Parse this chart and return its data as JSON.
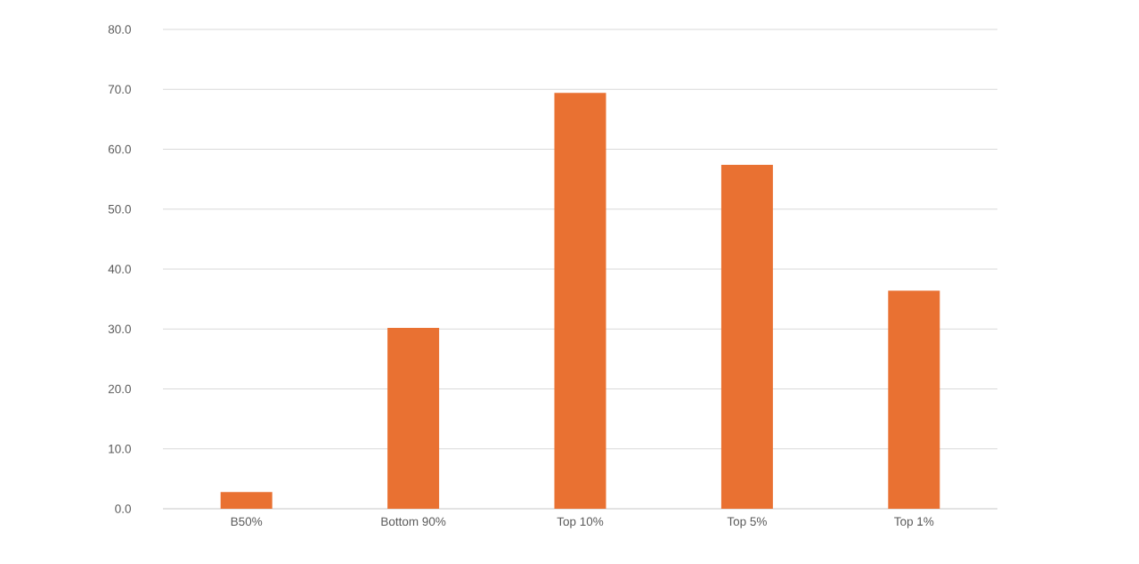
{
  "chart_data": {
    "type": "bar",
    "categories": [
      "B50%",
      "Bottom 90%",
      "Top 10%",
      "Top 5%",
      "Top 1%"
    ],
    "values": [
      2.8,
      30.2,
      69.4,
      57.4,
      36.4
    ],
    "color": "#e97132",
    "ylim": [
      0,
      80
    ],
    "yticks": [
      {
        "value": 0,
        "label": "0.0"
      },
      {
        "value": 10,
        "label": "10.0"
      },
      {
        "value": 20,
        "label": "20.0"
      },
      {
        "value": 30,
        "label": "30.0"
      },
      {
        "value": 40,
        "label": "40.0"
      },
      {
        "value": 50,
        "label": "50.0"
      },
      {
        "value": 60,
        "label": "60.0"
      },
      {
        "value": 70,
        "label": "70.0"
      },
      {
        "value": 80,
        "label": "80.0"
      }
    ],
    "grid": "y"
  }
}
